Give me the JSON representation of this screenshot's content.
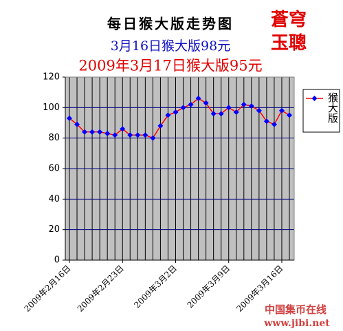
{
  "chart_data": {
    "type": "line",
    "title": "每日猴大版走势图",
    "subtitle": "3月16日猴大版98元",
    "annotation": "2009年3月17日猴大版95元",
    "signature": [
      "蒼穹",
      "玉聰"
    ],
    "watermark": [
      "中国集币在线",
      "www.jibi.net"
    ],
    "categories": [
      "2009年2月16日",
      null,
      null,
      null,
      null,
      null,
      null,
      "2009年2月23日",
      null,
      null,
      null,
      null,
      null,
      null,
      "2009年3月2日",
      null,
      null,
      null,
      null,
      null,
      null,
      "2009年3月9日",
      null,
      null,
      null,
      null,
      null,
      null,
      "2009年3月16日",
      null
    ],
    "series": [
      {
        "name": "猴大版",
        "color": "#ff0000",
        "marker_color": "#0000ff",
        "values": [
          93,
          89,
          84,
          84,
          84,
          83,
          82,
          86,
          82,
          82,
          82,
          80,
          88,
          95,
          97,
          100,
          102,
          106,
          103,
          96,
          96,
          100,
          97,
          102,
          101,
          98,
          91,
          89,
          98,
          95
        ]
      }
    ],
    "ylim": [
      0,
      120
    ],
    "yticks": [
      0,
      20,
      40,
      60,
      80,
      100,
      120
    ],
    "grid": true,
    "grid_color": "#000080",
    "plot_background": "#c0c0c0",
    "legend": "right"
  }
}
